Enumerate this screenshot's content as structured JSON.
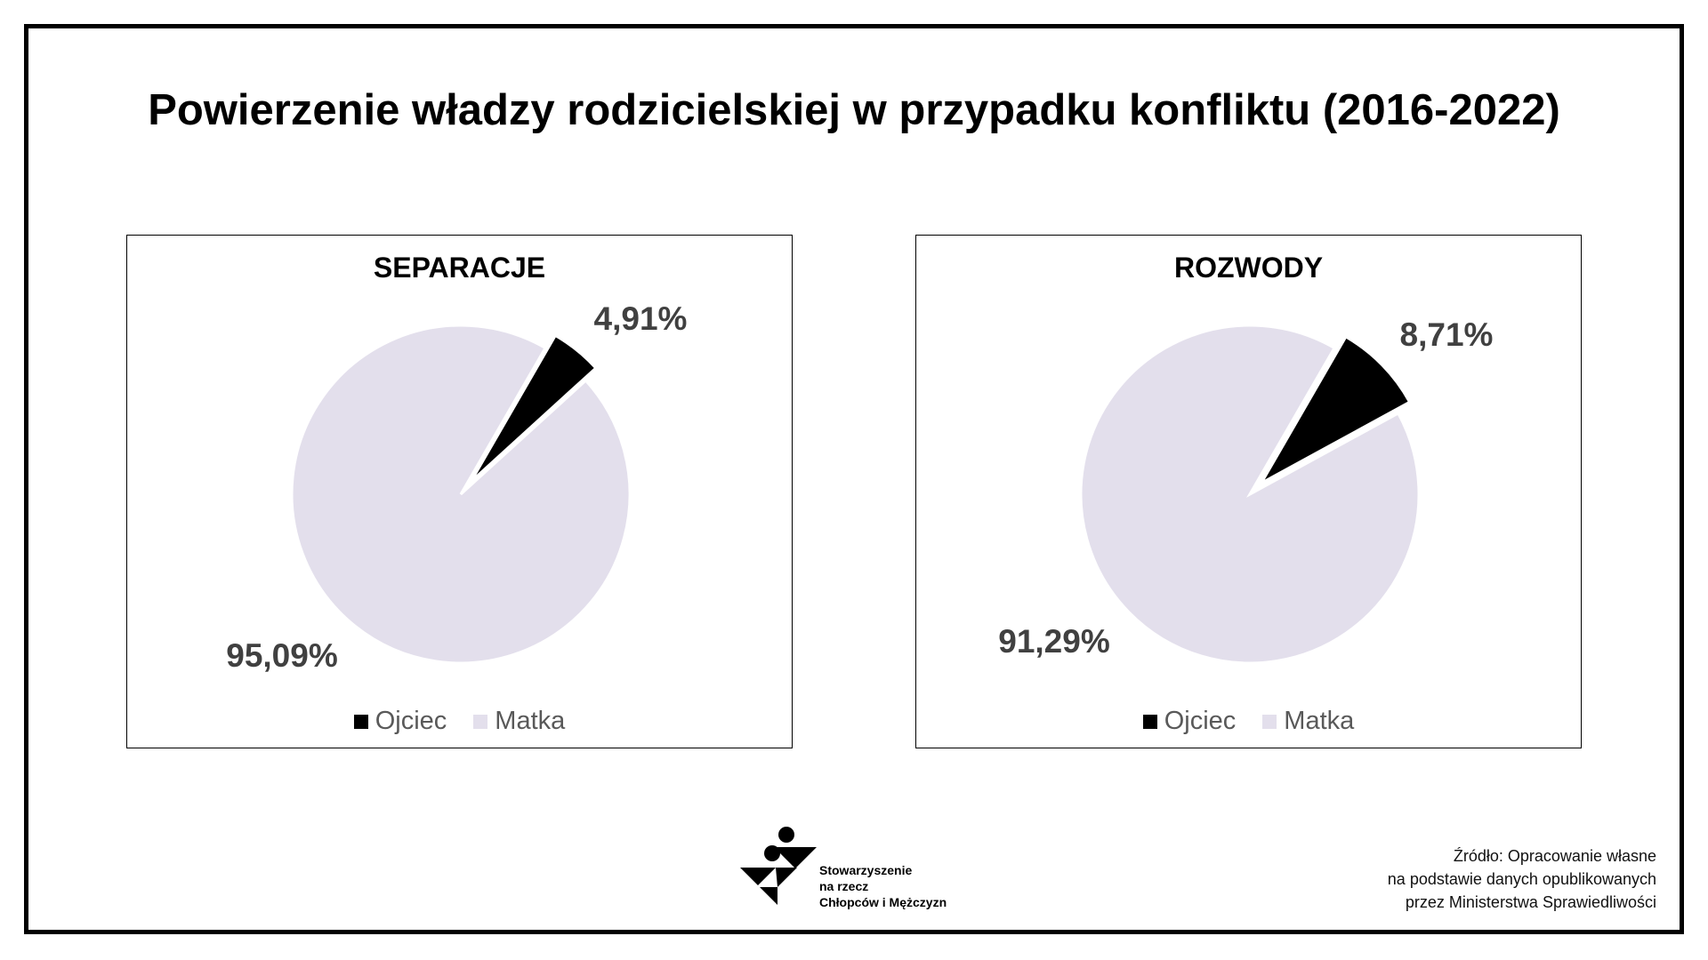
{
  "title": "Powierzenie władzy rodzicielskiej w przypadku konfliktu (2016-2022)",
  "colors": {
    "ojciec": "#000000",
    "matka": "#E3DFEC",
    "label": "#404040"
  },
  "chart_data": [
    {
      "type": "pie",
      "title": "SEPARACJE",
      "categories": [
        "Ojciec",
        "Matka"
      ],
      "values": [
        4.91,
        95.09
      ],
      "labels": [
        "4,91%",
        "95,09%"
      ],
      "legend": [
        "Ojciec",
        "Matka"
      ],
      "legend_position": "bottom",
      "exploded": "Ojciec"
    },
    {
      "type": "pie",
      "title": "ROZWODY",
      "categories": [
        "Ojciec",
        "Matka"
      ],
      "values": [
        8.71,
        91.29
      ],
      "labels": [
        "8,71%",
        "91,29%"
      ],
      "legend": [
        "Ojciec",
        "Matka"
      ],
      "legend_position": "bottom",
      "exploded": "Ojciec"
    }
  ],
  "logo": {
    "lines": [
      "Stowarzyszenie",
      "na rzecz",
      "Chłopców i Mężczyzn"
    ]
  },
  "source": {
    "lines": [
      "Źródło: Opracowanie własne",
      "na podstawie danych opublikowanych",
      "przez Ministerstwa Sprawiedliwości"
    ]
  }
}
